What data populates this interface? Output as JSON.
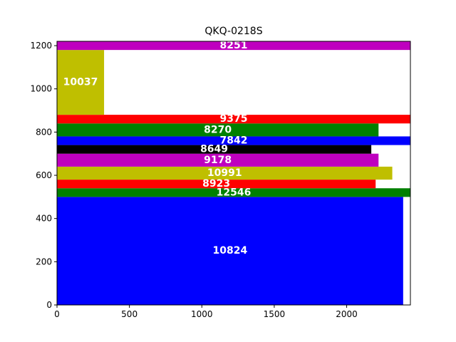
{
  "chart_data": {
    "type": "bar",
    "orientation": "horizontal-stacked-rectangles",
    "title": "QKQ-0218S",
    "xlabel": "",
    "ylabel": "",
    "xlim": [
      0,
      2440
    ],
    "ylim": [
      0,
      1220
    ],
    "xticks": [
      0,
      500,
      1000,
      1500,
      2000
    ],
    "yticks": [
      0,
      200,
      400,
      600,
      800,
      1000,
      1200
    ],
    "grid": false,
    "bars": [
      {
        "label": "10824",
        "x0": 0,
        "width": 2390,
        "y0": 0,
        "height": 500,
        "color": "#0000ff"
      },
      {
        "label": "12546",
        "x0": 0,
        "width": 2440,
        "y0": 500,
        "height": 40,
        "color": "#008000"
      },
      {
        "label": "8923",
        "x0": 0,
        "width": 2200,
        "y0": 540,
        "height": 40,
        "color": "#ff0000"
      },
      {
        "label": "10991",
        "x0": 0,
        "width": 2315,
        "y0": 580,
        "height": 60,
        "color": "#bfbf00"
      },
      {
        "label": "9178",
        "x0": 0,
        "width": 2220,
        "y0": 640,
        "height": 60,
        "color": "#bf00bf"
      },
      {
        "label": "8649",
        "x0": 0,
        "width": 2170,
        "y0": 700,
        "height": 40,
        "color": "#000000"
      },
      {
        "label": "7842",
        "x0": 0,
        "width": 2440,
        "y0": 740,
        "height": 40,
        "color": "#0000ff"
      },
      {
        "label": "8270",
        "x0": 0,
        "width": 2220,
        "y0": 780,
        "height": 60,
        "color": "#008000"
      },
      {
        "label": "9375",
        "x0": 0,
        "width": 2440,
        "y0": 840,
        "height": 40,
        "color": "#ff0000"
      },
      {
        "label": "10037",
        "x0": 0,
        "width": 325,
        "y0": 880,
        "height": 300,
        "color": "#bfbf00"
      },
      {
        "label": "8251",
        "x0": 0,
        "width": 2440,
        "y0": 1180,
        "height": 40,
        "color": "#bf00bf"
      }
    ]
  }
}
